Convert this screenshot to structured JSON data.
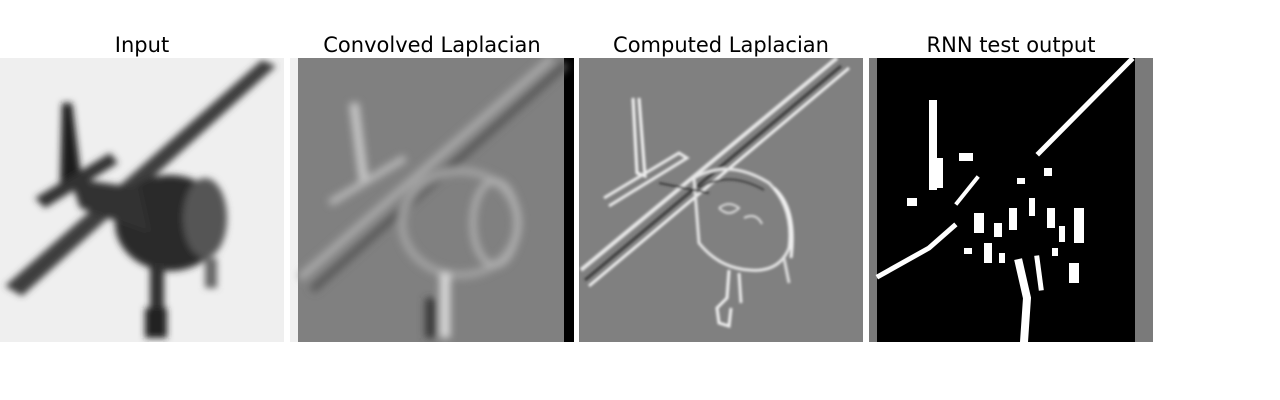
{
  "panels": [
    {
      "id": "input",
      "title": "Input"
    },
    {
      "id": "convolved",
      "title": "Convolved Laplacian"
    },
    {
      "id": "computed",
      "title": "Computed Laplacian"
    },
    {
      "id": "rnn",
      "title": "RNN test output"
    }
  ],
  "colors": {
    "input_bg": "#eeeeee",
    "input_plane": "#3a3a3a",
    "laplacian_bg": "#808080",
    "laplacian_light": "#d0d0d0",
    "laplacian_dark": "#4a4a4a",
    "edge_white": "#ffffff",
    "rnn_bg": "#000000"
  }
}
